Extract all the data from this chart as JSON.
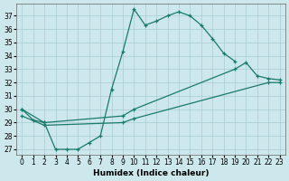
{
  "background_color": "#cce8ec",
  "grid_color": "#aaccd4",
  "line_color": "#1a7a6a",
  "xlabel": "Humidex (Indice chaleur)",
  "xlim": [
    -0.5,
    23.5
  ],
  "ylim": [
    26.6,
    37.9
  ],
  "yticks": [
    27,
    28,
    29,
    30,
    31,
    32,
    33,
    34,
    35,
    36,
    37
  ],
  "xticks": [
    0,
    1,
    2,
    3,
    4,
    5,
    6,
    7,
    8,
    9,
    10,
    11,
    12,
    13,
    14,
    15,
    16,
    17,
    18,
    19,
    20,
    21,
    22,
    23
  ],
  "curve1_x": [
    0,
    1,
    2,
    3,
    4,
    5,
    6,
    7,
    8,
    9,
    10,
    11,
    12,
    13,
    14,
    15,
    16,
    17,
    18,
    19
  ],
  "curve1_y": [
    30.0,
    29.2,
    29.0,
    27.0,
    27.0,
    27.0,
    27.5,
    28.0,
    31.5,
    34.3,
    37.5,
    36.3,
    36.6,
    37.0,
    37.3,
    37.0,
    36.3,
    35.3,
    34.2,
    33.6
  ],
  "curve2_x": [
    0,
    2,
    9,
    10,
    19,
    20,
    21,
    22,
    23
  ],
  "curve2_y": [
    30.0,
    29.0,
    29.5,
    30.0,
    33.0,
    33.5,
    32.5,
    32.3,
    32.2
  ],
  "curve3_x": [
    0,
    2,
    9,
    10,
    22,
    23
  ],
  "curve3_y": [
    29.5,
    28.8,
    29.0,
    29.3,
    32.0,
    32.0
  ]
}
